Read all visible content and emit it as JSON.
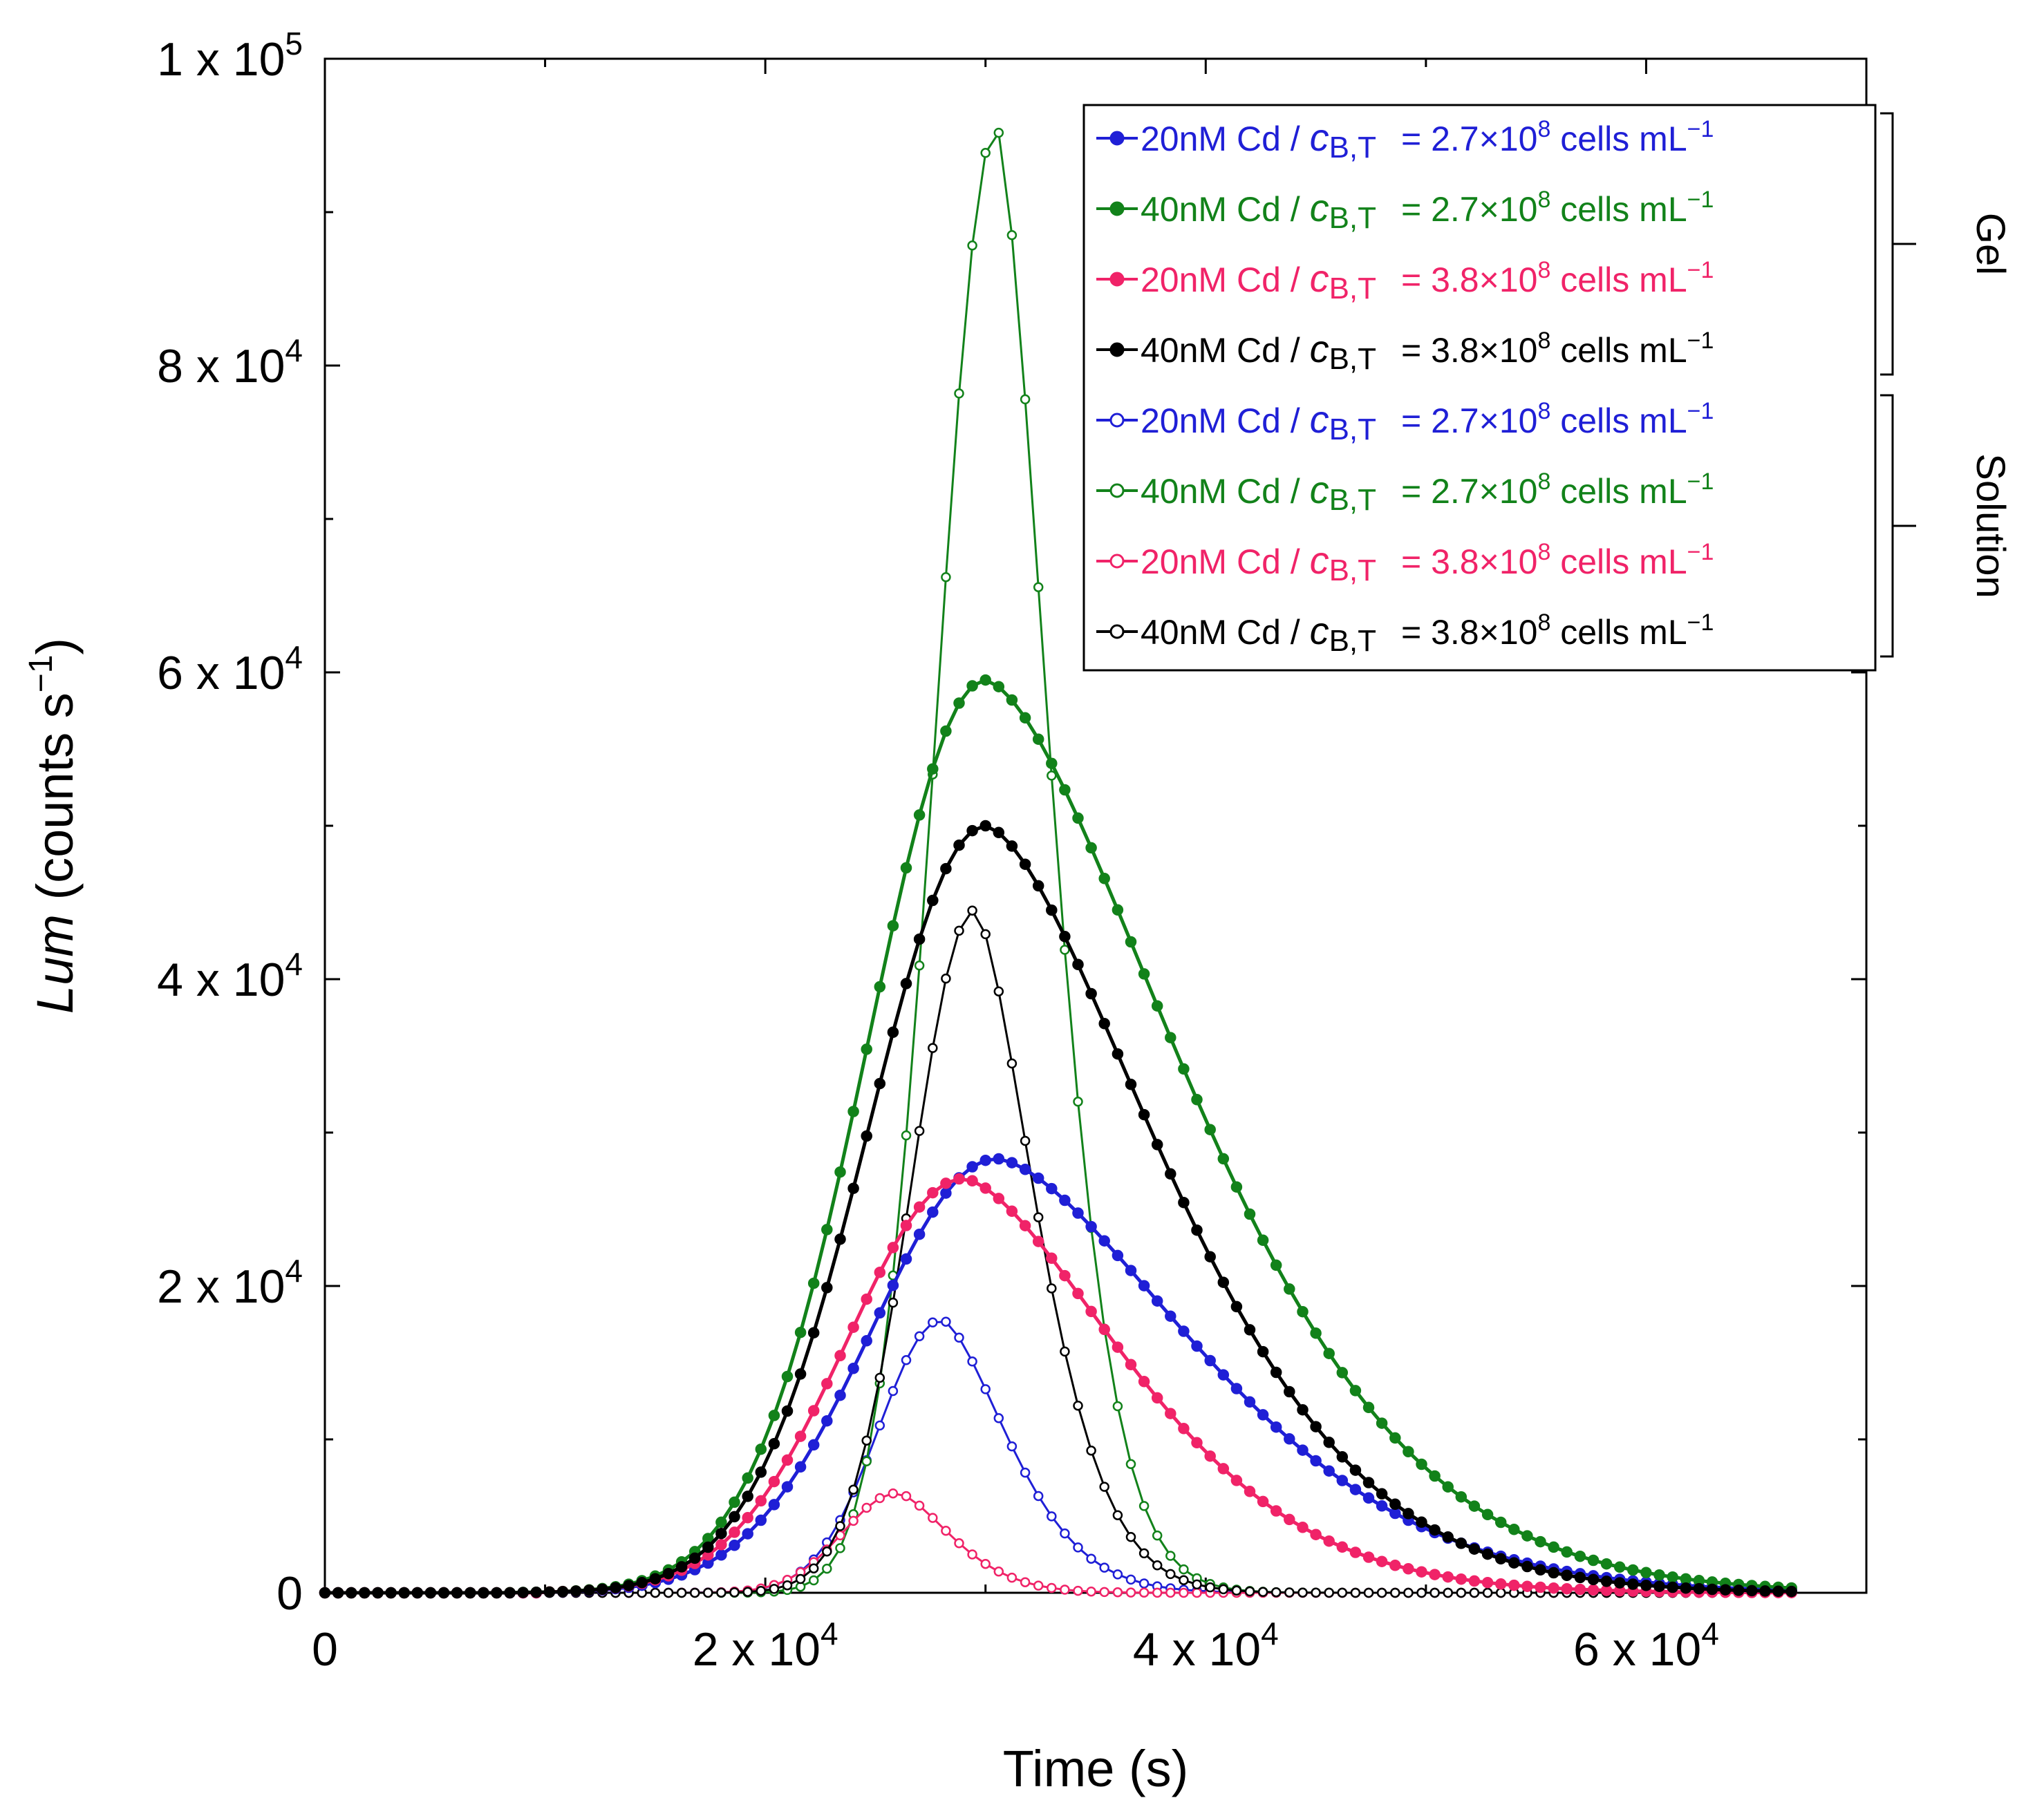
{
  "chart_data": {
    "type": "line",
    "title": "",
    "xlabel": "Time (s)",
    "ylabel_italic": "Lum",
    "ylabel_rest": " (counts s",
    "ylabel_sup": "−1",
    "ylabel_close": ")",
    "xlim": [
      0,
      70000
    ],
    "ylim": [
      0,
      100000
    ],
    "x_major_ticks": [
      0,
      20000,
      40000,
      60000
    ],
    "y_major_ticks": [
      0,
      20000,
      40000,
      60000,
      80000,
      100000
    ],
    "y_minor_step": 10000,
    "x_tick_labels": [
      {
        "value": 0,
        "mant": "0",
        "exp": ""
      },
      {
        "value": 20000,
        "mant": "2 x 10",
        "exp": "4"
      },
      {
        "value": 40000,
        "mant": "4 x 10",
        "exp": "4"
      },
      {
        "value": 60000,
        "mant": "6 x 10",
        "exp": "4"
      }
    ],
    "y_tick_labels": [
      {
        "value": 0,
        "mant": "0",
        "exp": ""
      },
      {
        "value": 20000,
        "mant": "2 x 10",
        "exp": "4"
      },
      {
        "value": 40000,
        "mant": "4 x 10",
        "exp": "4"
      },
      {
        "value": 60000,
        "mant": "6 x 10",
        "exp": "4"
      },
      {
        "value": 80000,
        "mant": "8 x 10",
        "exp": "4"
      },
      {
        "value": 100000,
        "mant": "1 x 10",
        "exp": "5"
      }
    ],
    "legend_groups": [
      {
        "label": "Gel",
        "series": [
          0,
          1,
          2,
          3
        ]
      },
      {
        "label": "Solution",
        "series": [
          4,
          5,
          6,
          7
        ]
      }
    ],
    "series": [
      {
        "name": "20nM Cd / cB,T = 2.7×108 cells mL−1",
        "conc": "20nM Cd / ",
        "sym": "c",
        "sub": "B,T",
        "eq": "= 2.7×10",
        "esup": "8",
        "unit": " cells mL",
        "usup": "−1",
        "color": "#1f1fd6",
        "filled": true,
        "peak_x": 30500,
        "peak_y": 28300,
        "rise_w": 8000,
        "fall_w": 13000,
        "onset": 10000,
        "dt": 600,
        "marker_size": 7
      },
      {
        "name": "40nM Cd / cB,T = 2.7×108 cells mL−1",
        "conc": "40nM Cd / ",
        "sym": "c",
        "sub": "B,T",
        "eq": "= 2.7×10",
        "esup": "8",
        "unit": " cells mL",
        "usup": "−1",
        "color": "#12821a",
        "filled": true,
        "peak_x": 30000,
        "peak_y": 59500,
        "rise_w": 7500,
        "fall_w": 13000,
        "onset": 8000,
        "dt": 600,
        "marker_size": 7
      },
      {
        "name": "20nM Cd / cB,T = 3.8×108 cells mL−1",
        "conc": "20nM Cd / ",
        "sym": "c",
        "sub": "B,T",
        "eq": "= 3.8×10",
        "esup": "8",
        "unit": " cells mL",
        "usup": "−1",
        "color": "#f02368",
        "filled": true,
        "peak_x": 29000,
        "peak_y": 27000,
        "rise_w": 7500,
        "fall_w": 10500,
        "onset": 10000,
        "dt": 600,
        "marker_size": 7
      },
      {
        "name": "40nM Cd / cB,T = 3.8×108 cells mL−1",
        "conc": "40nM Cd / ",
        "sym": "c",
        "sub": "B,T",
        "eq": "= 3.8×10",
        "esup": "8",
        "unit": " cells mL",
        "usup": "−1",
        "color": "#000000",
        "filled": true,
        "peak_x": 30000,
        "peak_y": 50000,
        "rise_w": 7500,
        "fall_w": 11500,
        "onset": 9000,
        "dt": 600,
        "marker_size": 7
      },
      {
        "name": "20nM Cd / cB,T = 2.7×108 cells mL−1",
        "conc": "20nM Cd / ",
        "sym": "c",
        "sub": "B,T",
        "eq": "= 2.7×10",
        "esup": "8",
        "unit": " cells mL",
        "usup": "−1",
        "color": "#1f1fd6",
        "filled": false,
        "peak_x": 28000,
        "peak_y": 17800,
        "rise_w": 4000,
        "fall_w": 4300,
        "onset": 14000,
        "dt": 600,
        "marker_size": 6
      },
      {
        "name": "40nM Cd / cB,T = 2.7×108 cells mL−1",
        "conc": "40nM Cd / ",
        "sym": "c",
        "sub": "B,T",
        "eq": "= 2.7×10",
        "esup": "8",
        "unit": " cells mL",
        "usup": "−1",
        "color": "#12821a",
        "filled": false,
        "peak_x": 30500,
        "peak_y": 95500,
        "rise_w": 3800,
        "fall_w": 3500,
        "onset": 14000,
        "dt": 600,
        "marker_size": 6
      },
      {
        "name": "20nM Cd / cB,T = 3.8×108 cells mL−1",
        "conc": "20nM Cd / ",
        "sym": "c",
        "sub": "B,T",
        "eq": "= 3.8×10",
        "esup": "8",
        "unit": " cells mL",
        "usup": "−1",
        "color": "#f02368",
        "filled": false,
        "peak_x": 26000,
        "peak_y": 6500,
        "rise_w": 3500,
        "fall_w": 3500,
        "onset": 14000,
        "dt": 600,
        "marker_size": 6
      },
      {
        "name": "40nM Cd / cB,T = 3.8×108 cells mL−1",
        "conc": "40nM Cd / ",
        "sym": "c",
        "sub": "B,T",
        "eq": "= 3.8×10",
        "esup": "8",
        "unit": " cells mL",
        "usup": "−1",
        "color": "#000000",
        "filled": false,
        "peak_x": 29500,
        "peak_y": 44500,
        "rise_w": 4000,
        "fall_w": 4000,
        "onset": 14000,
        "dt": 600,
        "marker_size": 6
      }
    ],
    "x_end": 67000
  }
}
